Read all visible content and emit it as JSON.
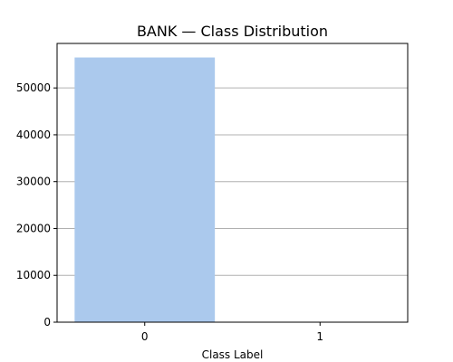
{
  "chart_data": {
    "type": "bar",
    "title": "BANK — Class Distribution",
    "xlabel": "Class Label",
    "ylabel": "",
    "categories": [
      "0",
      "1"
    ],
    "values": [
      56500,
      0
    ],
    "ylim": [
      0,
      59500
    ],
    "yticks": [
      0,
      10000,
      20000,
      30000,
      40000,
      50000
    ],
    "ytick_labels": [
      "0",
      "10000",
      "20000",
      "30000",
      "40000",
      "50000"
    ],
    "grid": "y",
    "bar_color": "#abc9ed",
    "grid_color": "#b0b0b0"
  }
}
